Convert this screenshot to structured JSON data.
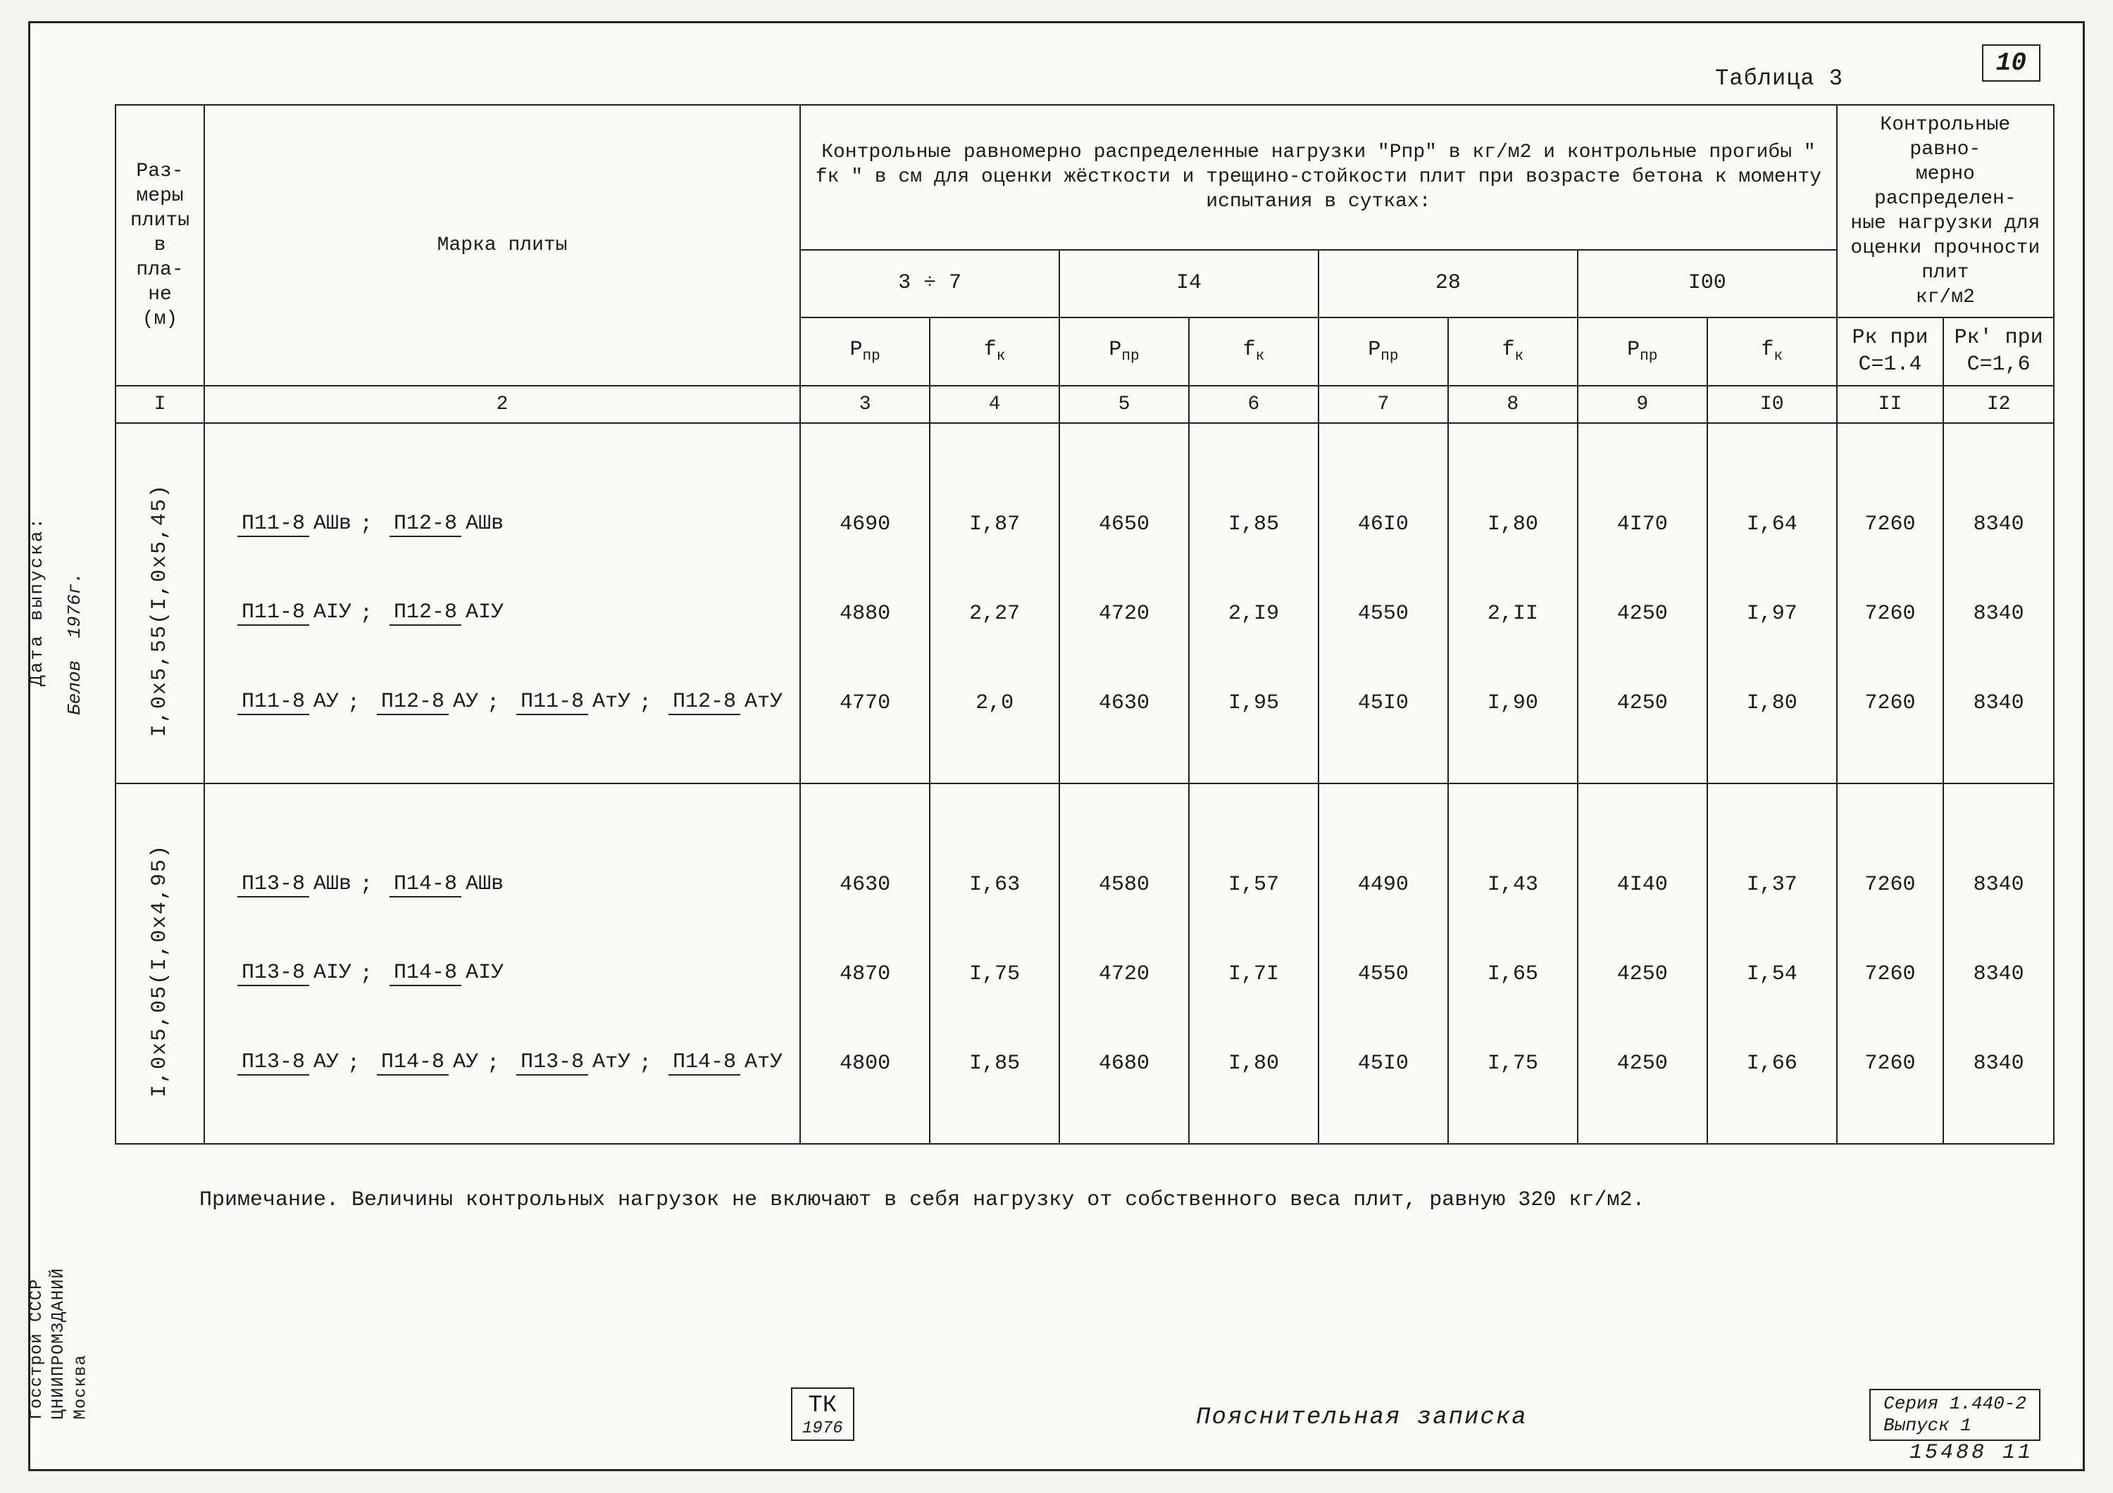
{
  "page_number": "10",
  "caption": "Таблица 3",
  "header": {
    "col1": "Раз-\nмеры\nплиты\nв пла-\nне\n(м)",
    "col2": "Марка плиты",
    "group_main": "Контрольные равномерно распределенные нагрузки \"Рпр\" в кг/м2 и контрольные прогибы \" fк \" в см для оценки жёсткости и трещино-стойкости плит при возрасте бетона к моменту испытания в сутках:",
    "group_right": "Контрольные равно-\nмерно распределен-\nные нагрузки для\nоценки прочности\nплит\nкг/м2",
    "ages": [
      "3 ÷ 7",
      "I4",
      "28",
      "I00"
    ],
    "s_p": "Pпр",
    "s_f": "fк",
    "pk14": "Pк при C=1.4",
    "pk16": "Pк' при C=1,6"
  },
  "colnums": [
    "I",
    "2",
    "3",
    "4",
    "5",
    "6",
    "7",
    "8",
    "9",
    "I0",
    "II",
    "I2"
  ],
  "sizes": {
    "g1": "I,0x5,55(I,0x5,45)",
    "g2": "I,0x5,05(I,0x4,95)"
  },
  "marks": {
    "g1r1": {
      "a": "П11-8",
      "b": "АШв",
      "c": "П12-8",
      "d": "АШв"
    },
    "g1r2": {
      "a": "П11-8",
      "b": "АIУ",
      "c": "П12-8",
      "d": "АIУ"
    },
    "g1r3": {
      "a": "П11-8",
      "b": "АУ",
      "c": "П12-8",
      "d": "АУ",
      "e": "П11-8",
      "f": "АтУ",
      "g": "П12-8",
      "h": "АтУ"
    },
    "g2r1": {
      "a": "П13-8",
      "b": "АШв",
      "c": "П14-8",
      "d": "АШв"
    },
    "g2r2": {
      "a": "П13-8",
      "b": "АIУ",
      "c": "П14-8",
      "d": "АIУ"
    },
    "g2r3": {
      "a": "П13-8",
      "b": "АУ",
      "c": "П14-8",
      "d": "АУ",
      "e": "П13-8",
      "f": "АтУ",
      "g": "П14-8",
      "h": "АтУ"
    }
  },
  "vals": {
    "g1r1": [
      "4690",
      "I,87",
      "4650",
      "I,85",
      "46I0",
      "I,80",
      "4I70",
      "I,64",
      "7260",
      "8340"
    ],
    "g1r2": [
      "4880",
      "2,27",
      "4720",
      "2,I9",
      "4550",
      "2,II",
      "4250",
      "I,97",
      "7260",
      "8340"
    ],
    "g1r3": [
      "4770",
      "2,0",
      "4630",
      "I,95",
      "45I0",
      "I,90",
      "4250",
      "I,80",
      "7260",
      "8340"
    ],
    "g2r1": [
      "4630",
      "I,63",
      "4580",
      "I,57",
      "4490",
      "I,43",
      "4I40",
      "I,37",
      "7260",
      "8340"
    ],
    "g2r2": [
      "4870",
      "I,75",
      "4720",
      "I,7I",
      "4550",
      "I,65",
      "4250",
      "I,54",
      "7260",
      "8340"
    ],
    "g2r3": [
      "4800",
      "I,85",
      "4680",
      "I,80",
      "45I0",
      "I,75",
      "4250",
      "I,66",
      "7260",
      "8340"
    ]
  },
  "note": "Примечание. Величины контрольных нагрузок не включают в себя нагрузку от собственного веса плит, равную 320 кг/м2.",
  "footer": {
    "tk": "ТК",
    "tk_year": "1976",
    "title": "Пояснительная записка",
    "series1": "Серия 1.440-2",
    "series2": "Выпуск 1"
  },
  "sheet": "15488   11",
  "side": {
    "name": "Белов",
    "year": "1976г.",
    "label": "Дата  выпуска:",
    "org1": "Госстрой СССР",
    "org2": "ЦНИИПРОМЗДАНИЙ",
    "org3": "Москва"
  }
}
